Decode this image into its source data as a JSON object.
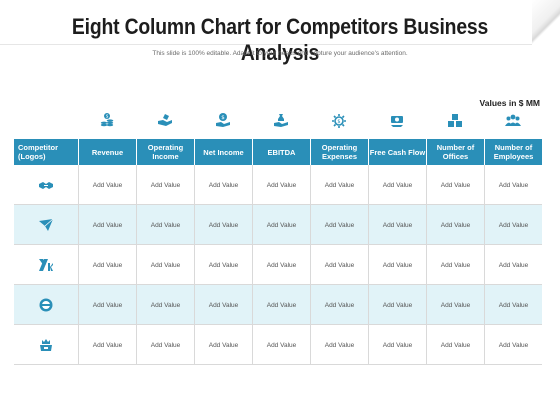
{
  "header": {
    "title": "Eight Column Chart for Competitors Business Analysis",
    "subtitle": "This slide is 100% editable. Adapt it to your needs and capture your audience's attention.",
    "units": "Values in $ MM"
  },
  "icons": [
    "coins-dollar-icon",
    "hand-money-icon",
    "dollar-hand-icon",
    "bag-hand-icon",
    "gear-dollar-icon",
    "cash-flow-icon",
    "buildings-icon",
    "team-icon"
  ],
  "table": {
    "headers": [
      "Competitor (Logos)",
      "Revenue",
      "Operating Income",
      "Net Income",
      "EBITDA",
      "Operating Expenses",
      "Free Cash Flow",
      "Number of Offices",
      "Number of Employees"
    ],
    "rows": [
      {
        "logo": "handshake-logo-icon",
        "cells": [
          "Add Value",
          "Add Value",
          "Add Value",
          "Add Value",
          "Add Value",
          "Add Value",
          "Add Value",
          "Add Value"
        ]
      },
      {
        "logo": "paper-plane-logo-icon",
        "cells": [
          "Add Value",
          "Add Value",
          "Add Value",
          "Add Value",
          "Add Value",
          "Add Value",
          "Add Value",
          "Add Value"
        ]
      },
      {
        "logo": "xk-letter-logo-icon",
        "cells": [
          "Add Value",
          "Add Value",
          "Add Value",
          "Add Value",
          "Add Value",
          "Add Value",
          "Add Value",
          "Add Value"
        ]
      },
      {
        "logo": "circle-bar-logo-icon",
        "cells": [
          "Add Value",
          "Add Value",
          "Add Value",
          "Add Value",
          "Add Value",
          "Add Value",
          "Add Value",
          "Add Value"
        ]
      },
      {
        "logo": "crown-box-logo-icon",
        "cells": [
          "Add Value",
          "Add Value",
          "Add Value",
          "Add Value",
          "Add Value",
          "Add Value",
          "Add Value",
          "Add Value"
        ]
      }
    ]
  },
  "colors": {
    "header_bg": "#2a8fb8",
    "alt_row": "#e1f3f8",
    "icon": "#2a8fb8"
  }
}
